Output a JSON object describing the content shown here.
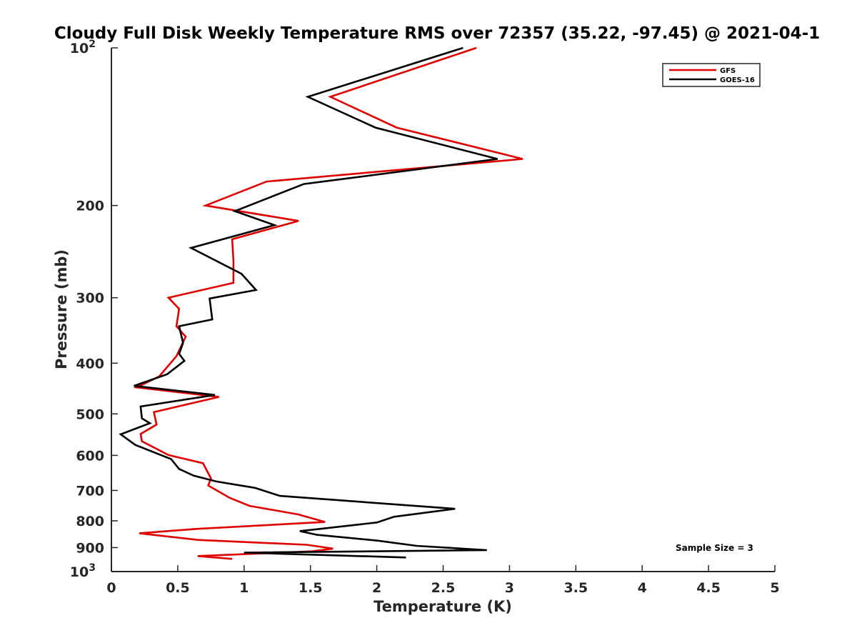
{
  "chart_data": {
    "type": "line",
    "title": "Cloudy Full Disk Weekly Temperature RMS over 72357 (35.22, -97.45) @ 2021-04-1",
    "xlabel": "Temperature (K)",
    "ylabel": "Pressure (mb)",
    "xlim": [
      0,
      5
    ],
    "ylim": [
      100,
      1000
    ],
    "y_scale": "log",
    "y_reversed": true,
    "grid": false,
    "legend_position": "top-right",
    "x_ticks": [
      "0",
      "0.5",
      "1",
      "1.5",
      "2",
      "2.5",
      "3",
      "3.5",
      "4",
      "4.5",
      "5"
    ],
    "x_tick_values": [
      0,
      0.5,
      1,
      1.5,
      2,
      2.5,
      3,
      3.5,
      4,
      4.5,
      5
    ],
    "y_ticks": [
      {
        "value": 100,
        "label": "10",
        "sup": "2"
      },
      {
        "value": 200,
        "label": "200",
        "sup": ""
      },
      {
        "value": 300,
        "label": "300",
        "sup": ""
      },
      {
        "value": 400,
        "label": "400",
        "sup": ""
      },
      {
        "value": 500,
        "label": "500",
        "sup": ""
      },
      {
        "value": 600,
        "label": "600",
        "sup": ""
      },
      {
        "value": 700,
        "label": "700",
        "sup": ""
      },
      {
        "value": 800,
        "label": "800",
        "sup": ""
      },
      {
        "value": 900,
        "label": "900",
        "sup": ""
      },
      {
        "value": 1000,
        "label": "10",
        "sup": "3"
      }
    ],
    "annotation": "Sample Size = 3",
    "series": [
      {
        "name": "GFS",
        "color": "#e00000",
        "points": [
          [
            2.75,
            100
          ],
          [
            1.65,
            124
          ],
          [
            2.15,
            142
          ],
          [
            3.1,
            163
          ],
          [
            1.17,
            180
          ],
          [
            0.71,
            200
          ],
          [
            1.41,
            214
          ],
          [
            0.91,
            232
          ],
          [
            0.92,
            255
          ],
          [
            0.92,
            281
          ],
          [
            0.43,
            300
          ],
          [
            0.51,
            315
          ],
          [
            0.49,
            340
          ],
          [
            0.56,
            356
          ],
          [
            0.49,
            388
          ],
          [
            0.36,
            424
          ],
          [
            0.19,
            445
          ],
          [
            0.81,
            464
          ],
          [
            0.32,
            496
          ],
          [
            0.34,
            524
          ],
          [
            0.22,
            546
          ],
          [
            0.23,
            564
          ],
          [
            0.43,
            599
          ],
          [
            0.69,
            621
          ],
          [
            0.75,
            664
          ],
          [
            0.73,
            685
          ],
          [
            0.89,
            723
          ],
          [
            1.04,
            749
          ],
          [
            1.41,
            778
          ],
          [
            1.61,
            804
          ],
          [
            0.64,
            829
          ],
          [
            0.21,
            845
          ],
          [
            0.65,
            870
          ],
          [
            1.47,
            889
          ],
          [
            1.67,
            904
          ],
          [
            1.51,
            915
          ],
          [
            0.65,
            934
          ],
          [
            0.91,
            946
          ]
        ]
      },
      {
        "name": "GOES-16",
        "color": "#000000",
        "points": [
          [
            2.65,
            100
          ],
          [
            1.48,
            124
          ],
          [
            1.99,
            142
          ],
          [
            2.91,
            163
          ],
          [
            1.45,
            182
          ],
          [
            0.93,
            205
          ],
          [
            1.23,
            218
          ],
          [
            0.6,
            241
          ],
          [
            0.98,
            270
          ],
          [
            1.09,
            290
          ],
          [
            0.74,
            301
          ],
          [
            0.76,
            330
          ],
          [
            0.51,
            340
          ],
          [
            0.54,
            366
          ],
          [
            0.51,
            384
          ],
          [
            0.55,
            396
          ],
          [
            0.42,
            420
          ],
          [
            0.17,
            442
          ],
          [
            0.78,
            460
          ],
          [
            0.22,
            484
          ],
          [
            0.23,
            510
          ],
          [
            0.29,
            521
          ],
          [
            0.07,
            547
          ],
          [
            0.18,
            573
          ],
          [
            0.45,
            610
          ],
          [
            0.51,
            637
          ],
          [
            0.62,
            656
          ],
          [
            0.79,
            673
          ],
          [
            1.08,
            692
          ],
          [
            1.27,
            717
          ],
          [
            2.59,
            759
          ],
          [
            2.13,
            786
          ],
          [
            2.0,
            806
          ],
          [
            1.42,
            837
          ],
          [
            1.55,
            851
          ],
          [
            2.01,
            873
          ],
          [
            2.3,
            893
          ],
          [
            2.83,
            910
          ],
          [
            1.0,
            920
          ],
          [
            2.22,
            940
          ]
        ]
      }
    ]
  }
}
